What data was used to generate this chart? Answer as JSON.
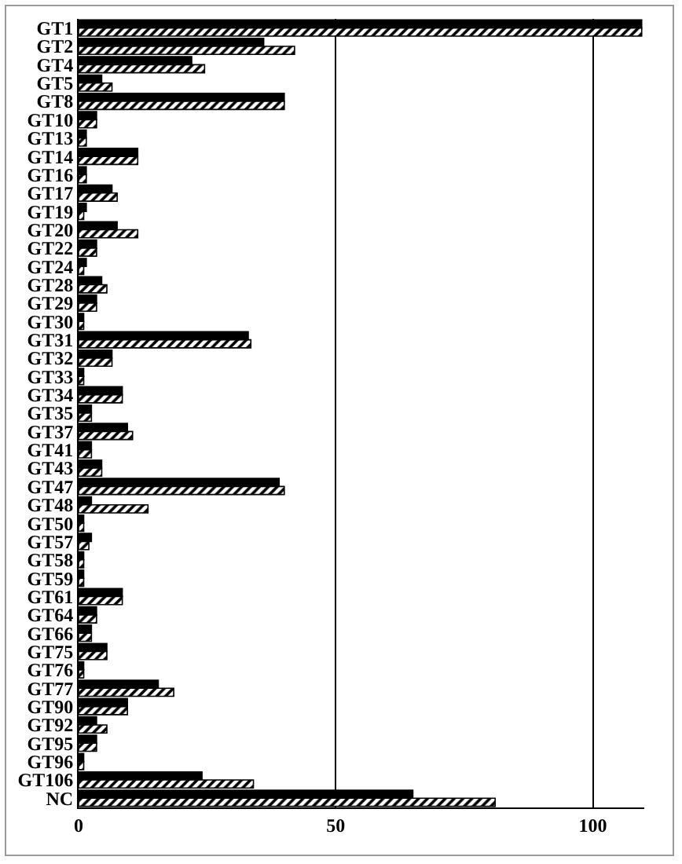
{
  "chart_data": {
    "type": "bar",
    "orientation": "horizontal",
    "categories": [
      "GT1",
      "GT2",
      "GT4",
      "GT5",
      "GT8",
      "GT10",
      "GT13",
      "GT14",
      "GT16",
      "GT17",
      "GT19",
      "GT20",
      "GT22",
      "GT24",
      "GT28",
      "GT29",
      "GT30",
      "GT31",
      "GT32",
      "GT33",
      "GT34",
      "GT35",
      "GT37",
      "GT41",
      "GT43",
      "GT47",
      "GT48",
      "GT50",
      "GT57",
      "GT58",
      "GT59",
      "GT61",
      "GT64",
      "GT66",
      "GT75",
      "GT76",
      "GT77",
      "GT90",
      "GT92",
      "GT95",
      "GT96",
      "GT106",
      "NC"
    ],
    "series": [
      {
        "color": "#000000",
        "values": [
          109.5,
          36,
          22,
          4.5,
          40,
          3.5,
          1.5,
          11.5,
          1.5,
          6.5,
          1.5,
          7.5,
          3.5,
          1.5,
          4.5,
          3.5,
          1,
          33,
          6.5,
          1,
          8.5,
          2.5,
          9.5,
          2.5,
          4.5,
          39,
          2.5,
          1,
          2.5,
          1,
          1,
          8.5,
          3.5,
          2.5,
          5.5,
          1,
          15.5,
          9.5,
          3.5,
          3.5,
          1,
          24,
          65
        ]
      },
      {
        "color": "#000000",
        "values": [
          109.5,
          42,
          24.5,
          6.5,
          40,
          3.5,
          1.5,
          11.5,
          1.5,
          7.5,
          1,
          11.5,
          3.5,
          1,
          5.5,
          3.5,
          1,
          33.5,
          6.5,
          1,
          8.5,
          2.5,
          10.5,
          2.5,
          4.5,
          40,
          13.5,
          1,
          2,
          1,
          1,
          8.5,
          3.5,
          2.5,
          5.5,
          1,
          18.5,
          9.5,
          5.5,
          3.5,
          1,
          34,
          81
        ]
      }
    ],
    "xlim": [
      0,
      110
    ],
    "xticks": [
      0,
      50,
      100
    ],
    "grid": "x"
  }
}
